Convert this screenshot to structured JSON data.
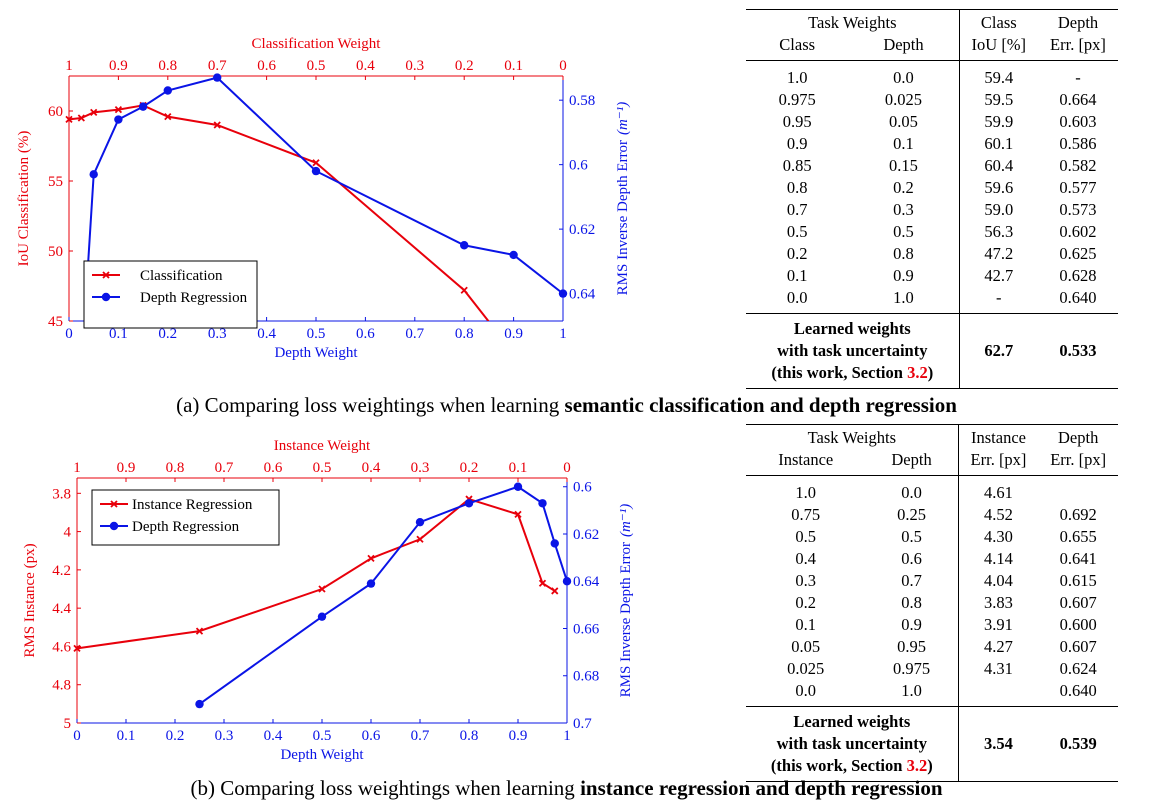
{
  "colors": {
    "red": "#e8000b",
    "blue": "#0a14e6",
    "black": "#000000"
  },
  "chart_data": [
    {
      "type": "line",
      "top_axis_label": "Classification Weight",
      "top_ticks": [
        "1",
        "0.9",
        "0.8",
        "0.7",
        "0.6",
        "0.5",
        "0.4",
        "0.3",
        "0.2",
        "0.1",
        "0"
      ],
      "xlabel": "Depth Weight",
      "x_ticks": [
        "0",
        "0.1",
        "0.2",
        "0.3",
        "0.4",
        "0.5",
        "0.6",
        "0.7",
        "0.8",
        "0.9",
        "1"
      ],
      "xlim": [
        0,
        1
      ],
      "ylabel_left": "IoU Classification (%)",
      "ylim_left": [
        45,
        62.5
      ],
      "left_ticks": [
        45,
        50,
        55,
        60
      ],
      "left_tick_labels": [
        "45",
        "50",
        "55",
        "60"
      ],
      "ylabel_right": "RMS Inverse Depth Error",
      "ylabel_right_unit": "(m⁻¹)",
      "ylim_right": [
        0.6485,
        0.5725
      ],
      "right_ticks": [
        0.58,
        0.6,
        0.62,
        0.64
      ],
      "right_tick_labels": [
        "0.58",
        "0.6",
        "0.62",
        "0.64"
      ],
      "legend": "bottom-left",
      "series": [
        {
          "name": "Classification",
          "axis": "left",
          "color": "#e8000b",
          "marker": "x",
          "x": [
            0,
            0.025,
            0.05,
            0.1,
            0.15,
            0.2,
            0.3,
            0.5,
            0.8,
            0.9
          ],
          "y": [
            59.4,
            59.5,
            59.9,
            60.1,
            60.4,
            59.6,
            59.0,
            56.3,
            47.2,
            42.7
          ]
        },
        {
          "name": "Depth Regression",
          "axis": "right",
          "color": "#0a14e6",
          "marker": "o",
          "x": [
            0.025,
            0.05,
            0.1,
            0.15,
            0.2,
            0.3,
            0.5,
            0.8,
            0.9,
            1.0
          ],
          "y": [
            0.664,
            0.603,
            0.586,
            0.582,
            0.577,
            0.573,
            0.602,
            0.625,
            0.628,
            0.64
          ]
        }
      ]
    },
    {
      "type": "line",
      "top_axis_label": "Instance Weight",
      "top_ticks": [
        "1",
        "0.9",
        "0.8",
        "0.7",
        "0.6",
        "0.5",
        "0.4",
        "0.3",
        "0.2",
        "0.1",
        "0"
      ],
      "xlabel": "Depth Weight",
      "x_ticks": [
        "0",
        "0.1",
        "0.2",
        "0.3",
        "0.4",
        "0.5",
        "0.6",
        "0.7",
        "0.8",
        "0.9",
        "1"
      ],
      "xlim": [
        0,
        1
      ],
      "ylabel_left": "RMS Instance (px)",
      "ylim_left": [
        5.0,
        3.72
      ],
      "left_ticks": [
        3.8,
        4.0,
        4.2,
        4.4,
        4.6,
        4.8,
        5.0
      ],
      "left_tick_labels": [
        "3.8",
        "4",
        "4.2",
        "4.4",
        "4.6",
        "4.8",
        "5"
      ],
      "ylabel_right": "RMS Inverse Depth Error",
      "ylabel_right_unit": "(m⁻¹)",
      "ylim_right": [
        0.7,
        0.5963
      ],
      "right_ticks": [
        0.6,
        0.62,
        0.64,
        0.66,
        0.68,
        0.7
      ],
      "right_tick_labels": [
        "0.6",
        "0.62",
        "0.64",
        "0.66",
        "0.68",
        "0.7"
      ],
      "legend": "top-left",
      "series": [
        {
          "name": "Instance Regression",
          "axis": "left",
          "color": "#e8000b",
          "marker": "x",
          "x": [
            0,
            0.25,
            0.5,
            0.6,
            0.7,
            0.8,
            0.9,
            0.95,
            0.975
          ],
          "y": [
            4.61,
            4.52,
            4.3,
            4.14,
            4.04,
            3.83,
            3.91,
            4.27,
            4.31
          ]
        },
        {
          "name": "Depth Regression",
          "axis": "right",
          "color": "#0a14e6",
          "marker": "o",
          "x": [
            0.25,
            0.5,
            0.6,
            0.7,
            0.8,
            0.9,
            0.95,
            0.975,
            1.0
          ],
          "y": [
            0.692,
            0.655,
            0.641,
            0.615,
            0.607,
            0.6,
            0.607,
            0.624,
            0.64
          ]
        }
      ]
    }
  ],
  "tables": [
    {
      "group_header": "Task Weights",
      "sub_headers": [
        "Class",
        "Depth"
      ],
      "col3_line1": "Class",
      "col3_line2": "IoU [%]",
      "col4_line1": "Depth",
      "col4_line2": "Err. [px]",
      "rows": [
        [
          "1.0",
          "0.0",
          "59.4",
          "-"
        ],
        [
          "0.975",
          "0.025",
          "59.5",
          "0.664"
        ],
        [
          "0.95",
          "0.05",
          "59.9",
          "0.603"
        ],
        [
          "0.9",
          "0.1",
          "60.1",
          "0.586"
        ],
        [
          "0.85",
          "0.15",
          "60.4",
          "0.582"
        ],
        [
          "0.8",
          "0.2",
          "59.6",
          "0.577"
        ],
        [
          "0.7",
          "0.3",
          "59.0",
          "0.573"
        ],
        [
          "0.5",
          "0.5",
          "56.3",
          "0.602"
        ],
        [
          "0.2",
          "0.8",
          "47.2",
          "0.625"
        ],
        [
          "0.1",
          "0.9",
          "42.7",
          "0.628"
        ],
        [
          "0.0",
          "1.0",
          "-",
          "0.640"
        ]
      ],
      "learned_line1": "Learned weights",
      "learned_line2": "with task uncertainty",
      "learned_line3_prefix": "(this work, Section ",
      "learned_ref": "3.2",
      "learned_line3_suffix": ")",
      "learned_values": [
        "62.7",
        "0.533"
      ]
    },
    {
      "group_header": "Task Weights",
      "sub_headers": [
        "Instance",
        "Depth"
      ],
      "col3_line1": "Instance",
      "col3_line2": "Err. [px]",
      "col4_line1": "Depth",
      "col4_line2": "Err. [px]",
      "rows": [
        [
          "1.0",
          "0.0",
          "4.61",
          ""
        ],
        [
          "0.75",
          "0.25",
          "4.52",
          "0.692"
        ],
        [
          "0.5",
          "0.5",
          "4.30",
          "0.655"
        ],
        [
          "0.4",
          "0.6",
          "4.14",
          "0.641"
        ],
        [
          "0.3",
          "0.7",
          "4.04",
          "0.615"
        ],
        [
          "0.2",
          "0.8",
          "3.83",
          "0.607"
        ],
        [
          "0.1",
          "0.9",
          "3.91",
          "0.600"
        ],
        [
          "0.05",
          "0.95",
          "4.27",
          "0.607"
        ],
        [
          "0.025",
          "0.975",
          "4.31",
          "0.624"
        ],
        [
          "0.0",
          "1.0",
          "",
          "0.640"
        ]
      ],
      "learned_line1": "Learned weights",
      "learned_line2": "with task uncertainty",
      "learned_line3_prefix": "(this work, Section ",
      "learned_ref": "3.2",
      "learned_line3_suffix": ")",
      "learned_values": [
        "3.54",
        "0.539"
      ]
    }
  ],
  "captions": [
    {
      "prefix": "(a) Comparing loss weightings when learning ",
      "bold": "semantic classification and depth regression"
    },
    {
      "prefix": "(b) Comparing loss weightings when learning ",
      "bold": "instance regression and depth regression"
    }
  ]
}
